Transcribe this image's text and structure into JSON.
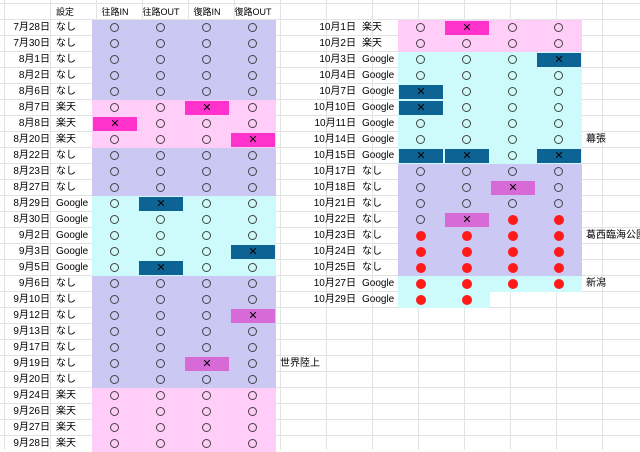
{
  "app": {
    "name": "Spreadsheet"
  },
  "palette": {
    "lavender": "#ccc8f4",
    "pink": "#ffcdf7",
    "cyan": "#cdfafa",
    "mark_pink": "#ff33cc",
    "mark_blue": "#0d6494",
    "mark_violet": "#d86ad8",
    "red_dot": "#ff1a1a"
  },
  "left_table": {
    "headers": [
      "",
      "設定",
      "往路IN",
      "往路OUT",
      "復路IN",
      "復路OUT"
    ],
    "rows": [
      {
        "date": "7月28日",
        "setting": "なし",
        "bg": "lavender",
        "marks": [
          "o",
          "o",
          "o",
          "o"
        ],
        "note": ""
      },
      {
        "date": "7月30日",
        "setting": "なし",
        "bg": "lavender",
        "marks": [
          "o",
          "o",
          "o",
          "o"
        ],
        "note": ""
      },
      {
        "date": "8月1日",
        "setting": "なし",
        "bg": "lavender",
        "marks": [
          "o",
          "o",
          "o",
          "o"
        ],
        "note": ""
      },
      {
        "date": "8月2日",
        "setting": "なし",
        "bg": "lavender",
        "marks": [
          "o",
          "o",
          "o",
          "o"
        ],
        "note": ""
      },
      {
        "date": "8月6日",
        "setting": "なし",
        "bg": "lavender",
        "marks": [
          "o",
          "o",
          "o",
          "o"
        ],
        "note": ""
      },
      {
        "date": "8月7日",
        "setting": "楽天",
        "bg": "pink",
        "marks": [
          "o",
          "o",
          "x:mark_pink",
          "o"
        ],
        "note": ""
      },
      {
        "date": "8月8日",
        "setting": "楽天",
        "bg": "pink",
        "marks": [
          "x:mark_pink",
          "o",
          "o",
          "o"
        ],
        "note": ""
      },
      {
        "date": "8月20日",
        "setting": "楽天",
        "bg": "pink",
        "marks": [
          "o",
          "o",
          "o",
          "x:mark_pink"
        ],
        "note": ""
      },
      {
        "date": "8月22日",
        "setting": "なし",
        "bg": "lavender",
        "marks": [
          "o",
          "o",
          "o",
          "o"
        ],
        "note": ""
      },
      {
        "date": "8月23日",
        "setting": "なし",
        "bg": "lavender",
        "marks": [
          "o",
          "o",
          "o",
          "o"
        ],
        "note": ""
      },
      {
        "date": "8月27日",
        "setting": "なし",
        "bg": "lavender",
        "marks": [
          "o",
          "o",
          "o",
          "o"
        ],
        "note": ""
      },
      {
        "date": "8月29日",
        "setting": "Google",
        "bg": "cyan",
        "marks": [
          "o",
          "x:mark_blue",
          "o",
          "o"
        ],
        "note": ""
      },
      {
        "date": "8月30日",
        "setting": "Google",
        "bg": "cyan",
        "marks": [
          "o",
          "o",
          "o",
          "o"
        ],
        "note": ""
      },
      {
        "date": "9月2日",
        "setting": "Google",
        "bg": "cyan",
        "marks": [
          "o",
          "o",
          "o",
          "o"
        ],
        "note": ""
      },
      {
        "date": "9月3日",
        "setting": "Google",
        "bg": "cyan",
        "marks": [
          "o",
          "o",
          "o",
          "x:mark_blue"
        ],
        "note": ""
      },
      {
        "date": "9月5日",
        "setting": "Google",
        "bg": "cyan",
        "marks": [
          "o",
          "x:mark_blue",
          "o",
          "o"
        ],
        "note": ""
      },
      {
        "date": "9月6日",
        "setting": "なし",
        "bg": "lavender",
        "marks": [
          "o",
          "o",
          "o",
          "o"
        ],
        "note": ""
      },
      {
        "date": "9月10日",
        "setting": "なし",
        "bg": "lavender",
        "marks": [
          "o",
          "o",
          "o",
          "o"
        ],
        "note": ""
      },
      {
        "date": "9月12日",
        "setting": "なし",
        "bg": "lavender",
        "marks": [
          "o",
          "o",
          "o",
          "x:mark_violet"
        ],
        "note": ""
      },
      {
        "date": "9月13日",
        "setting": "なし",
        "bg": "lavender",
        "marks": [
          "o",
          "o",
          "o",
          "o"
        ],
        "note": ""
      },
      {
        "date": "9月17日",
        "setting": "なし",
        "bg": "lavender",
        "marks": [
          "o",
          "o",
          "o",
          "o"
        ],
        "note": ""
      },
      {
        "date": "9月19日",
        "setting": "なし",
        "bg": "lavender",
        "marks": [
          "o",
          "o",
          "x:mark_violet",
          "o"
        ],
        "note": "世界陸上"
      },
      {
        "date": "9月20日",
        "setting": "なし",
        "bg": "lavender",
        "marks": [
          "o",
          "o",
          "o",
          "o"
        ],
        "note": ""
      },
      {
        "date": "9月24日",
        "setting": "楽天",
        "bg": "pink",
        "marks": [
          "o",
          "o",
          "o",
          "o"
        ],
        "note": ""
      },
      {
        "date": "9月26日",
        "setting": "楽天",
        "bg": "pink",
        "marks": [
          "o",
          "o",
          "o",
          "o"
        ],
        "note": ""
      },
      {
        "date": "9月27日",
        "setting": "楽天",
        "bg": "pink",
        "marks": [
          "o",
          "o",
          "o",
          "o"
        ],
        "note": ""
      },
      {
        "date": "9月28日",
        "setting": "楽天",
        "bg": "pink",
        "marks": [
          "o",
          "o",
          "o",
          "o"
        ],
        "note": ""
      }
    ]
  },
  "right_table": {
    "rows": [
      {
        "date": "10月1日",
        "setting": "楽天",
        "bg": "pink",
        "marks": [
          "o",
          "x:mark_pink",
          "o",
          "o"
        ],
        "note": ""
      },
      {
        "date": "10月2日",
        "setting": "楽天",
        "bg": "pink",
        "marks": [
          "o",
          "o",
          "o",
          "o"
        ],
        "note": ""
      },
      {
        "date": "10月3日",
        "setting": "Google",
        "bg": "cyan",
        "marks": [
          "o",
          "o",
          "o",
          "x:mark_blue"
        ],
        "note": ""
      },
      {
        "date": "10月4日",
        "setting": "Google",
        "bg": "cyan",
        "marks": [
          "o",
          "o",
          "o",
          "o"
        ],
        "note": ""
      },
      {
        "date": "10月7日",
        "setting": "Google",
        "bg": "cyan",
        "marks": [
          "x:mark_blue",
          "o",
          "o",
          "o"
        ],
        "note": ""
      },
      {
        "date": "10月10日",
        "setting": "Google",
        "bg": "cyan",
        "marks": [
          "x:mark_blue",
          "o",
          "o",
          "o"
        ],
        "note": ""
      },
      {
        "date": "10月11日",
        "setting": "Google",
        "bg": "cyan",
        "marks": [
          "o",
          "o",
          "o",
          "o"
        ],
        "note": ""
      },
      {
        "date": "10月14日",
        "setting": "Google",
        "bg": "cyan",
        "marks": [
          "o",
          "o",
          "o",
          "o"
        ],
        "note": "幕張"
      },
      {
        "date": "10月15日",
        "setting": "Google",
        "bg": "cyan",
        "marks": [
          "x:mark_blue",
          "x:mark_blue",
          "o",
          "x:mark_blue"
        ],
        "note": ""
      },
      {
        "date": "10月17日",
        "setting": "なし",
        "bg": "lavender",
        "marks": [
          "o",
          "o",
          "o",
          "o"
        ],
        "note": ""
      },
      {
        "date": "10月18日",
        "setting": "なし",
        "bg": "lavender",
        "marks": [
          "o",
          "o",
          "x:mark_violet",
          "o"
        ],
        "note": ""
      },
      {
        "date": "10月21日",
        "setting": "なし",
        "bg": "lavender",
        "marks": [
          "o",
          "o",
          "o",
          "o"
        ],
        "note": ""
      },
      {
        "date": "10月22日",
        "setting": "なし",
        "bg": "lavender",
        "marks": [
          "o",
          "x:mark_violet",
          "dot",
          "dot"
        ],
        "note": ""
      },
      {
        "date": "10月23日",
        "setting": "なし",
        "bg": "lavender",
        "marks": [
          "dot",
          "dot",
          "dot",
          "dot"
        ],
        "note": "葛西臨海公園"
      },
      {
        "date": "10月24日",
        "setting": "なし",
        "bg": "lavender",
        "marks": [
          "dot",
          "dot",
          "dot",
          "dot"
        ],
        "note": ""
      },
      {
        "date": "10月25日",
        "setting": "なし",
        "bg": "lavender",
        "marks": [
          "dot",
          "dot",
          "dot",
          "dot"
        ],
        "note": ""
      },
      {
        "date": "10月27日",
        "setting": "Google",
        "bg": "cyan",
        "marks": [
          "dot",
          "dot",
          "dot",
          "dot"
        ],
        "note": "新潟"
      },
      {
        "date": "10月29日",
        "setting": "Google",
        "bg": "cyan",
        "marks": [
          "dot",
          "dot",
          "",
          ""
        ],
        "note": ""
      }
    ]
  }
}
